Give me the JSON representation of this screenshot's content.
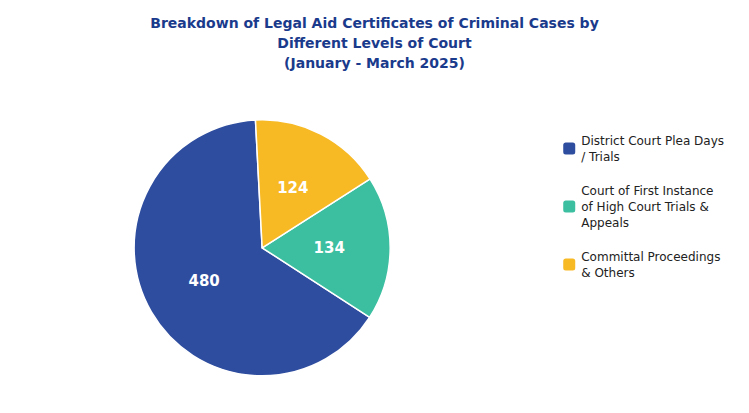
{
  "chart_data": {
    "type": "pie",
    "title": "Breakdown of Legal Aid Certificates of Criminal Cases by\nDifferent Levels of Court\n(January - March 2025)",
    "categories": [
      "District Court Plea Days\n/ Trials",
      "Court of First Instance\nof High Court Trials &\nAppeals",
      "Committal Proceedings\n& Others"
    ],
    "values": [
      480,
      134,
      124
    ],
    "colors": [
      "#2E4D9F",
      "#3BBFA0",
      "#F7B924"
    ],
    "data_labels": true,
    "legend": "right"
  }
}
